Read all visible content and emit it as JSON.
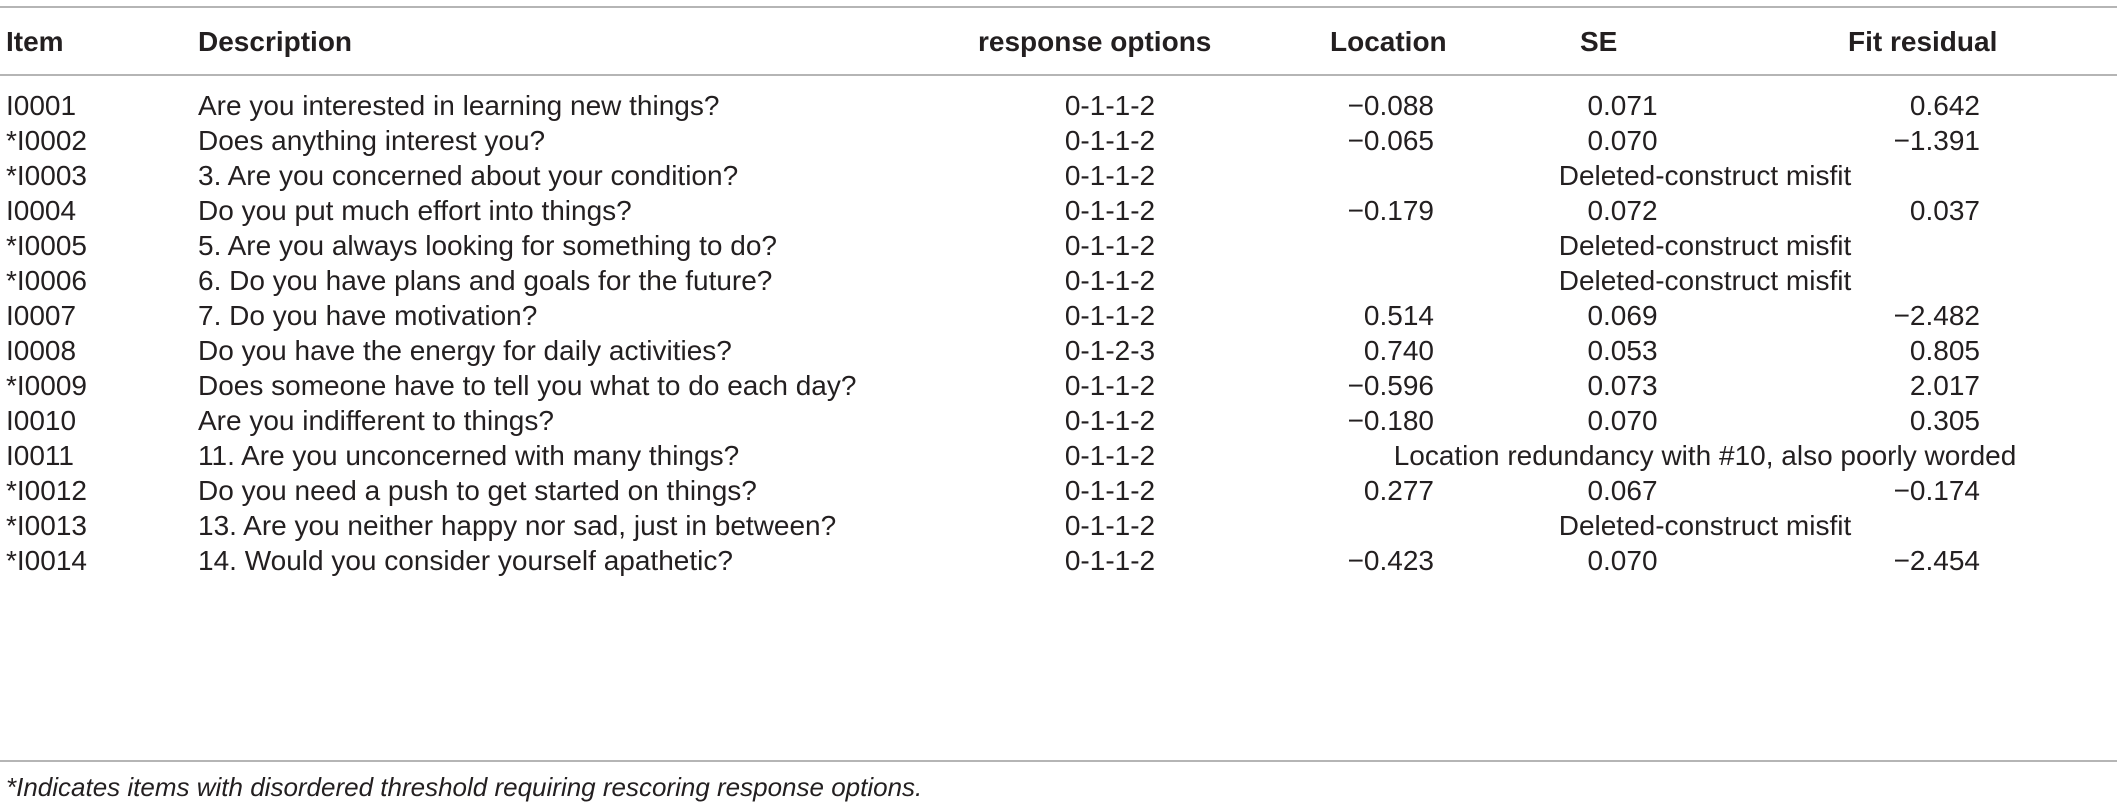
{
  "table": {
    "headers": {
      "item": "Item",
      "description": "Description",
      "response_options": "response options",
      "location": "Location",
      "se": "SE",
      "fit_residual": "Fit residual"
    },
    "rows": [
      {
        "item": "I0001",
        "description": "Are you interested in learning new things?",
        "response": "0-1-1-2",
        "location": "−0.088",
        "se": "0.071",
        "fit": "0.642",
        "note": ""
      },
      {
        "item": "*I0002",
        "description": "Does anything interest you?",
        "response": "0-1-1-2",
        "location": "−0.065",
        "se": "0.070",
        "fit": "−1.391",
        "note": ""
      },
      {
        "item": "*I0003",
        "description": "3. Are you concerned about your condition?",
        "response": "0-1-1-2",
        "location": "",
        "se": "",
        "fit": "",
        "note": "Deleted-construct misfit"
      },
      {
        "item": "I0004",
        "description": "Do you put much effort into things?",
        "response": "0-1-1-2",
        "location": "−0.179",
        "se": "0.072",
        "fit": "0.037",
        "note": ""
      },
      {
        "item": "*I0005",
        "description": "5. Are you always looking for something to do?",
        "response": "0-1-1-2",
        "location": "",
        "se": "",
        "fit": "",
        "note": "Deleted-construct misfit"
      },
      {
        "item": "*I0006",
        "description": "6. Do you have plans and goals for the future?",
        "response": "0-1-1-2",
        "location": "",
        "se": "",
        "fit": "",
        "note": "Deleted-construct misfit"
      },
      {
        "item": "I0007",
        "description": "7. Do you have motivation?",
        "response": "0-1-1-2",
        "location": "0.514",
        "se": "0.069",
        "fit": "−2.482",
        "note": ""
      },
      {
        "item": "I0008",
        "description": "Do you have the energy for daily activities?",
        "response": "0-1-2-3",
        "location": "0.740",
        "se": "0.053",
        "fit": "0.805",
        "note": ""
      },
      {
        "item": "*I0009",
        "description": "Does someone have to tell you what to do each day?",
        "response": "0-1-1-2",
        "location": "−0.596",
        "se": "0.073",
        "fit": "2.017",
        "note": ""
      },
      {
        "item": "I0010",
        "description": "Are you indifferent to things?",
        "response": "0-1-1-2",
        "location": "−0.180",
        "se": "0.070",
        "fit": "0.305",
        "note": ""
      },
      {
        "item": "I0011",
        "description": "11. Are you unconcerned with many things?",
        "response": "0-1-1-2",
        "location": "",
        "se": "",
        "fit": "",
        "note": "Location redundancy with #10, also poorly worded"
      },
      {
        "item": "*I0012",
        "description": "Do you need a push to get started on things?",
        "response": "0-1-1-2",
        "location": "0.277",
        "se": "0.067",
        "fit": "−0.174",
        "note": ""
      },
      {
        "item": "*I0013",
        "description": "13. Are you neither happy nor sad, just in between?",
        "response": "0-1-1-2",
        "location": "",
        "se": "",
        "fit": "",
        "note": "Deleted-construct misfit"
      },
      {
        "item": "*I0014",
        "description": "14. Would you consider yourself apathetic?",
        "response": "0-1-1-2",
        "location": "−0.423",
        "se": "0.070",
        "fit": "−2.454",
        "note": ""
      }
    ],
    "footnote": "*Indicates items with disordered threshold requiring rescoring response options."
  }
}
